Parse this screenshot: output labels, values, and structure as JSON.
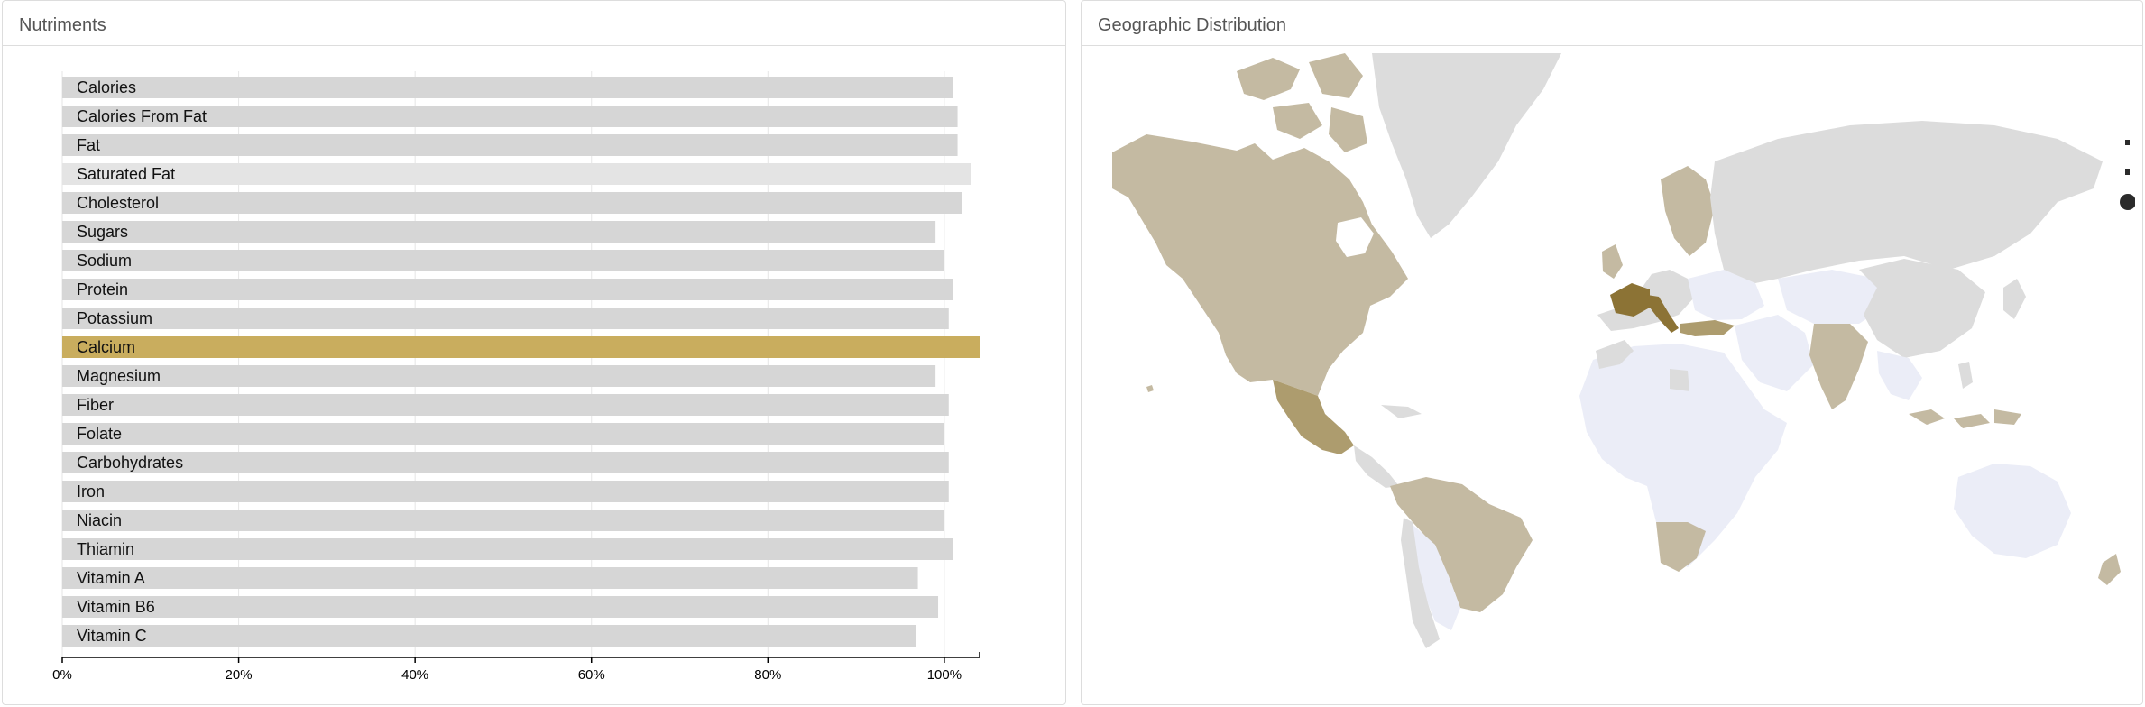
{
  "nutrients_panel": {
    "title": "Nutriments"
  },
  "map_panel": {
    "title": "Geographic Distribution"
  },
  "chart_data": {
    "type": "bar",
    "orientation": "horizontal",
    "categories": [
      "Calories",
      "Calories From Fat",
      "Fat",
      "Saturated Fat",
      "Cholesterol",
      "Sugars",
      "Sodium",
      "Protein",
      "Potassium",
      "Calcium",
      "Magnesium",
      "Fiber",
      "Folate",
      "Carbohydrates",
      "Iron",
      "Niacin",
      "Thiamin",
      "Vitamin A",
      "Vitamin B6",
      "Vitamin C"
    ],
    "values": [
      101,
      101.5,
      101.5,
      103,
      102,
      99,
      100,
      101,
      100.5,
      104,
      99,
      100.5,
      100,
      100.5,
      100.5,
      100,
      101,
      97,
      99.3,
      96.8
    ],
    "highlighted": "Calcium",
    "xlim": [
      0,
      104
    ],
    "xticks": [
      0,
      20,
      40,
      60,
      80,
      100
    ],
    "xtick_labels": [
      "0%",
      "20%",
      "40%",
      "60%",
      "80%",
      "100%"
    ],
    "grid": true,
    "colors": {
      "bar": "#d6d6d6",
      "bar_alt": "#e4e4e4",
      "highlight": "#c9ad5e",
      "grid": "#e6e6e6"
    }
  },
  "map_colors": {
    "ocean": "#ffffff",
    "no_data": "#ebedf7",
    "low": "#dcdcdc",
    "mid": "#c4baa2",
    "high": "#ad9c6e",
    "top": "#8c7335",
    "dot": "#2b2b2b"
  }
}
